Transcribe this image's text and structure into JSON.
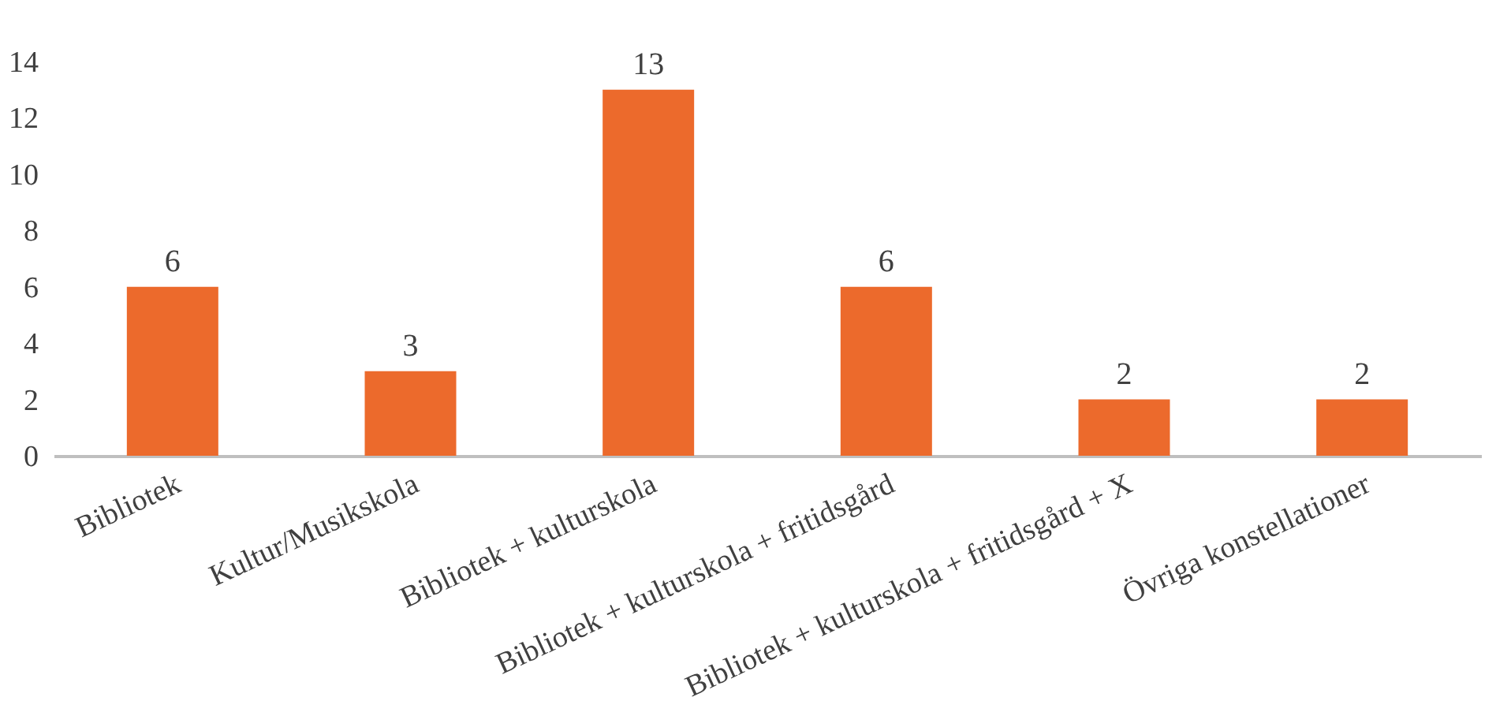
{
  "chart_data": {
    "type": "bar",
    "categories": [
      "Bibliotek",
      "Kultur/Musikskola",
      "Bibliotek + kulturskola",
      "Bibliotek + kulturskola + fritidsgård",
      "Bibliotek + kulturskola + fritidsgård + X",
      "Övriga konstellationer"
    ],
    "values": [
      6,
      3,
      13,
      6,
      2,
      2
    ],
    "color": "#ec6a2c",
    "ylim": [
      0,
      14
    ],
    "yticks": [
      0,
      2,
      4,
      6,
      8,
      10,
      12,
      14
    ],
    "grid": false,
    "data_labels": true
  }
}
